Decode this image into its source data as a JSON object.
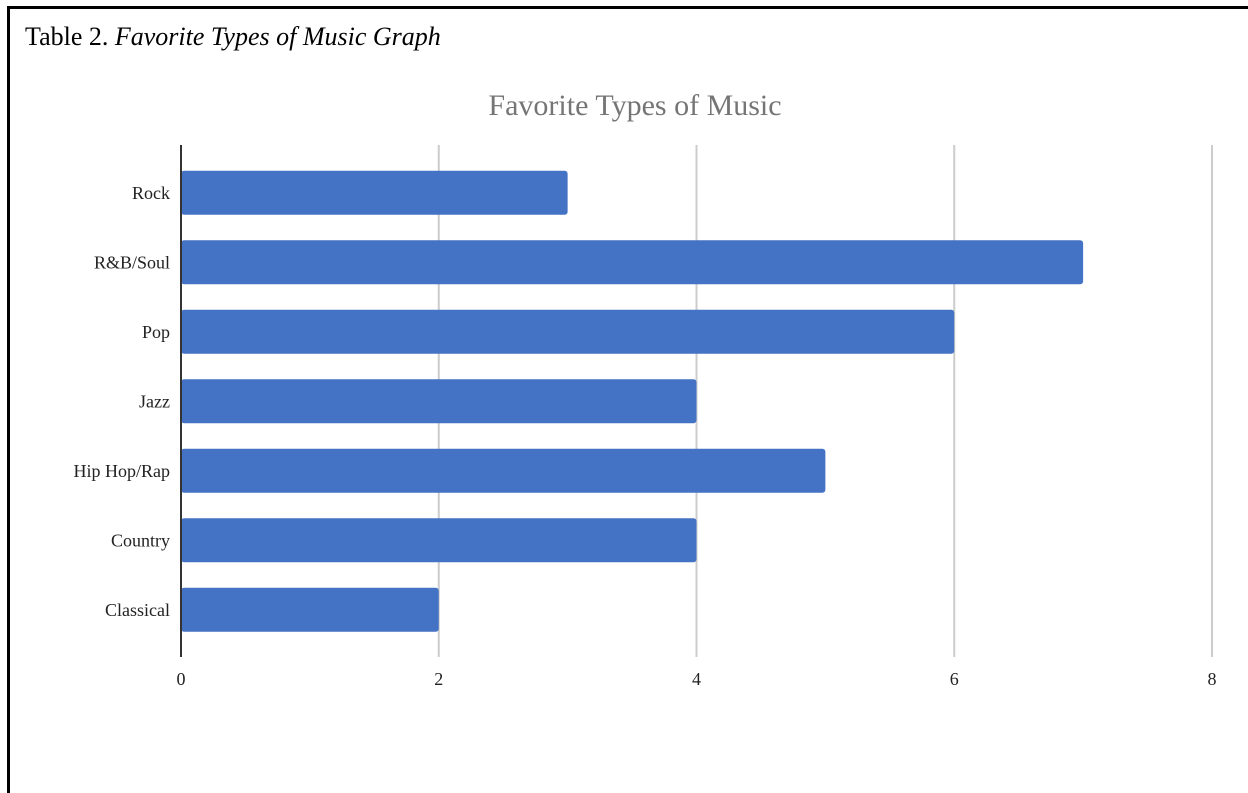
{
  "caption": {
    "label": "Table 2.",
    "title": "Favorite Types of Music Graph"
  },
  "colors": {
    "bar": "#4472c4",
    "grid": "#cccccc",
    "axis": "#333333"
  },
  "chart_data": {
    "type": "bar",
    "orientation": "horizontal",
    "title": "Favorite Types of Music",
    "xlabel": "",
    "ylabel": "",
    "categories": [
      "Rock",
      "R&B/Soul",
      "Pop",
      "Jazz",
      "Hip Hop/Rap",
      "Country",
      "Classical"
    ],
    "values": [
      3,
      7,
      6,
      4,
      5,
      4,
      2
    ],
    "xlim": [
      0,
      8
    ],
    "xticks": [
      0,
      2,
      4,
      6,
      8
    ],
    "grid": true,
    "legend": "none"
  }
}
